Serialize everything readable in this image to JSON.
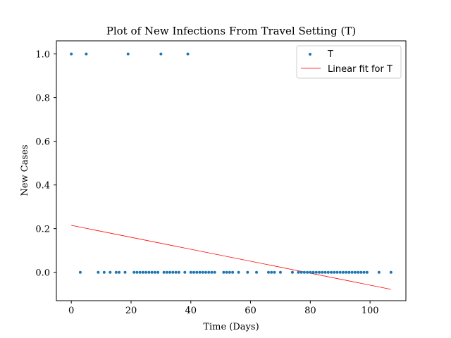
{
  "chart_data": {
    "type": "scatter",
    "title": "Plot of New Infections From Travel Setting (T)",
    "xlabel": "Time (Days)",
    "ylabel": "New Cases",
    "xlim": [
      -5,
      112
    ],
    "ylim": [
      -0.13,
      1.06
    ],
    "x_ticks": [
      0,
      20,
      40,
      60,
      80,
      100
    ],
    "x_tick_labels": [
      "0",
      "20",
      "40",
      "60",
      "80",
      "100"
    ],
    "y_ticks": [
      0.0,
      0.2,
      0.4,
      0.6,
      0.8,
      1.0
    ],
    "y_tick_labels": [
      "0.0",
      "0.2",
      "0.4",
      "0.6",
      "0.8",
      "1.0"
    ],
    "grid": false,
    "legend_position": "top-right",
    "colors": {
      "points": "#1f77b4",
      "fit": "#ff0000"
    },
    "series": [
      {
        "name": "T",
        "kind": "scatter",
        "x": [
          0,
          3,
          5,
          9,
          11,
          13,
          15,
          16,
          18,
          19,
          21,
          22,
          23,
          24,
          25,
          26,
          27,
          28,
          29,
          30,
          31,
          32,
          33,
          34,
          35,
          36,
          38,
          39,
          40,
          41,
          42,
          43,
          44,
          45,
          46,
          47,
          48,
          51,
          52,
          53,
          54,
          56,
          59,
          62,
          66,
          67,
          68,
          70,
          74,
          76,
          77,
          78,
          79,
          80,
          81,
          82,
          83,
          84,
          85,
          86,
          87,
          88,
          89,
          90,
          91,
          92,
          93,
          94,
          95,
          96,
          97,
          98,
          99,
          103,
          107
        ],
        "y": [
          1,
          0,
          1,
          0,
          0,
          0,
          0,
          0,
          0,
          1,
          0,
          0,
          0,
          0,
          0,
          0,
          0,
          0,
          0,
          1,
          0,
          0,
          0,
          0,
          0,
          0,
          0,
          1,
          0,
          0,
          0,
          0,
          0,
          0,
          0,
          0,
          0,
          0,
          0,
          0,
          0,
          0,
          0,
          0,
          0,
          0,
          0,
          0,
          0,
          0,
          0,
          0,
          0,
          0,
          0,
          0,
          0,
          0,
          0,
          0,
          0,
          0,
          0,
          0,
          0,
          0,
          0,
          0,
          0,
          0,
          0,
          0,
          0,
          0,
          0
        ]
      },
      {
        "name": "Linear fit for T",
        "kind": "line",
        "x": [
          0,
          107
        ],
        "y": [
          0.215,
          -0.078
        ]
      }
    ]
  }
}
